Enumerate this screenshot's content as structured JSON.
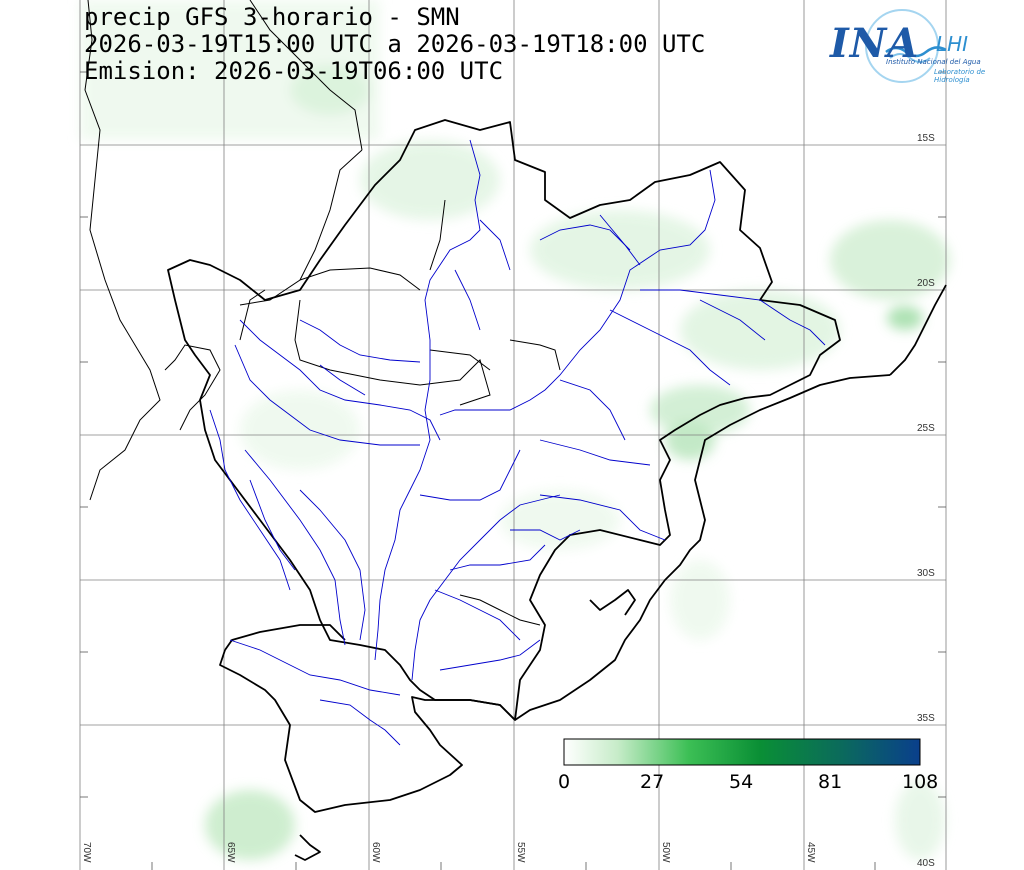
{
  "title": {
    "line1": "precip GFS 3-horario - SMN",
    "line2": "2026-03-19T15:00 UTC a 2026-03-19T18:00 UTC",
    "line3": "Emision: 2026-03-19T06:00 UTC"
  },
  "logo": {
    "main": "INA",
    "secondary": "LHI",
    "subtitle1": "Instituto Nacional del Agua",
    "subtitle2": "Laboratorio de Hidrología"
  },
  "grid": {
    "lat_labels": [
      "15S",
      "20S",
      "25S",
      "30S",
      "35S",
      "40S"
    ],
    "lon_labels": [
      "70W",
      "65W",
      "60W",
      "55W",
      "50W",
      "45W"
    ]
  },
  "colorbar": {
    "ticks": [
      "0",
      "27",
      "54",
      "81",
      "108"
    ],
    "min": 0,
    "max": 108,
    "colors": [
      "#ffffff",
      "#b8e6bc",
      "#2fb84a",
      "#0a8a3a",
      "#0b5e6e",
      "#0a3f8c"
    ]
  },
  "colors": {
    "border": "#000000",
    "river": "#0000cc",
    "gridline": "#808080"
  }
}
